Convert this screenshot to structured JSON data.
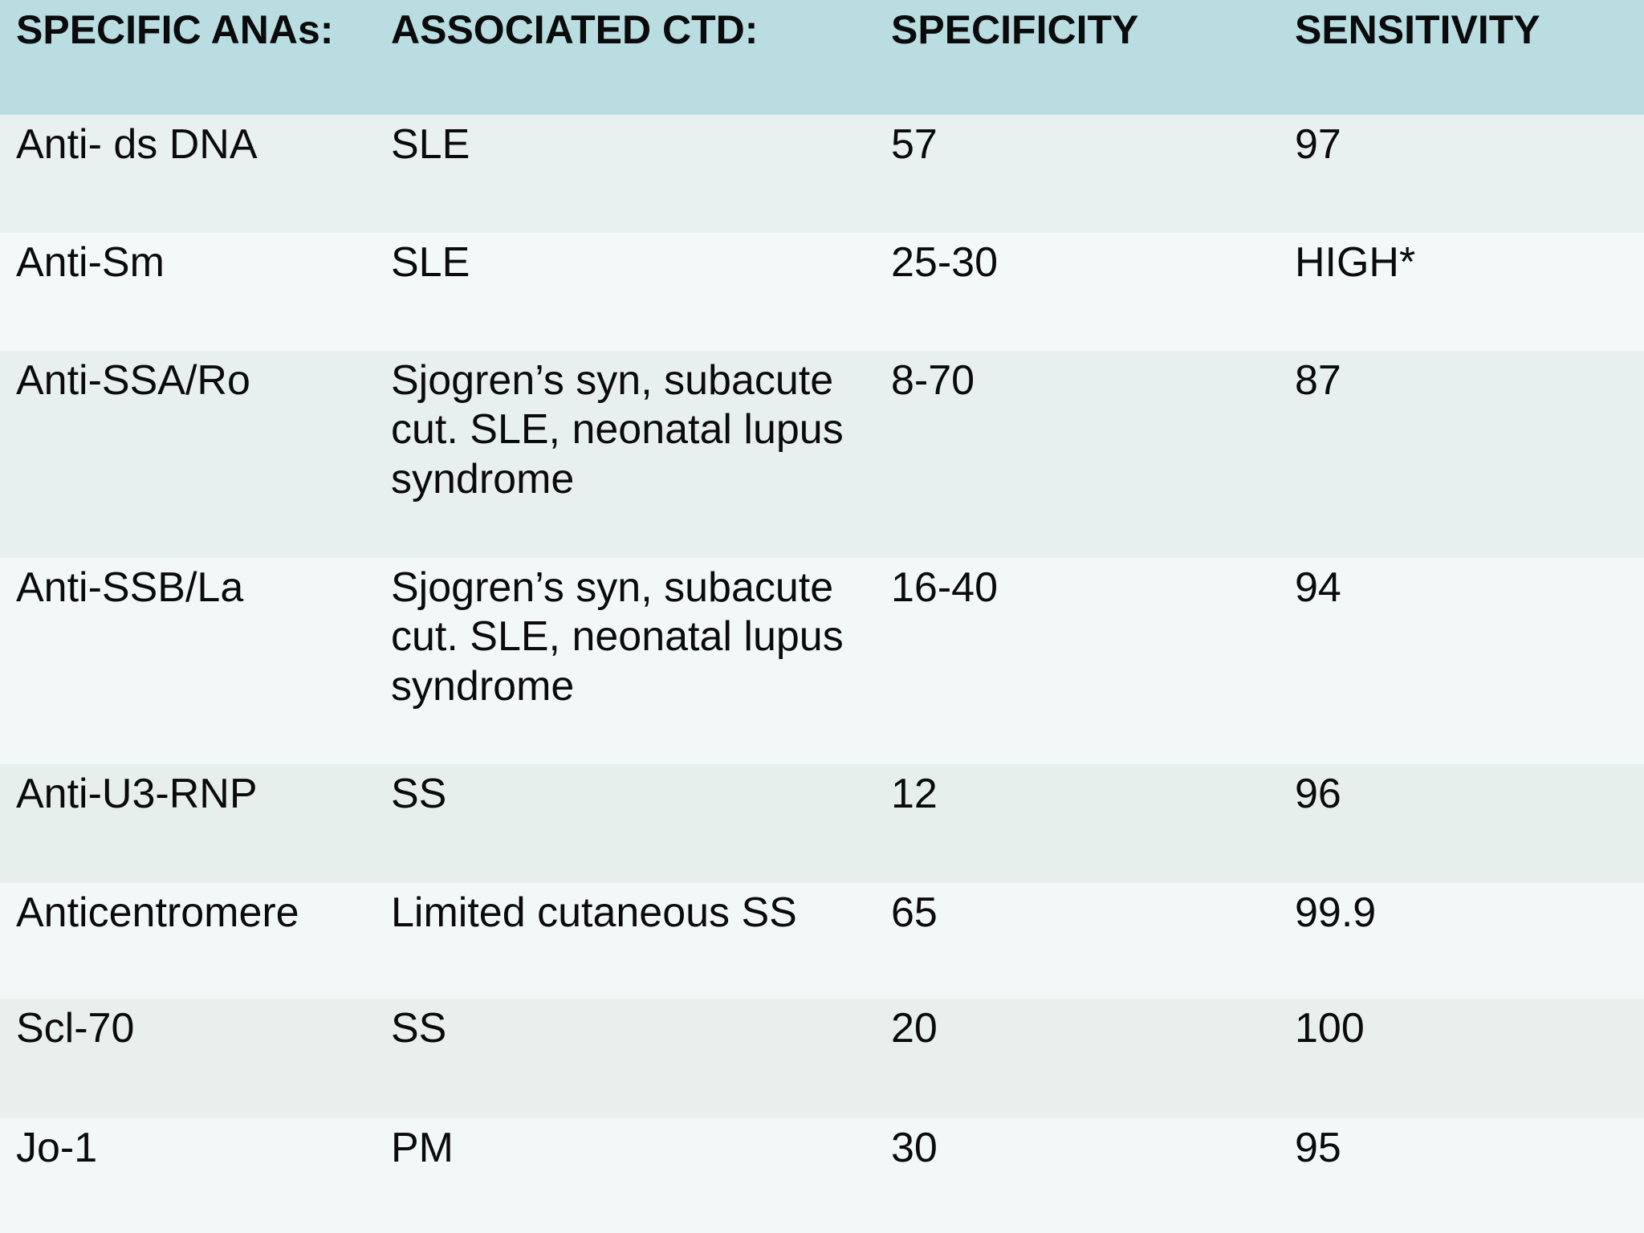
{
  "chart_data": {
    "type": "table",
    "columns": [
      "SPECIFIC ANAs:",
      "ASSOCIATED CTD:",
      "SPECIFICITY",
      "SENSITIVITY"
    ],
    "rows": [
      [
        "Anti- ds DNA",
        "SLE",
        "57",
        "97"
      ],
      [
        "Anti-Sm",
        "SLE",
        "25-30",
        "HIGH*"
      ],
      [
        "Anti-SSA/Ro",
        "Sjogren’s syn, subacute cut. SLE, neonatal lupus syndrome",
        "8-70",
        "87"
      ],
      [
        "Anti-SSB/La",
        "Sjogren’s syn, subacute cut. SLE, neonatal lupus syndrome",
        "16-40",
        "94"
      ],
      [
        "Anti-U3-RNP",
        "SS",
        "12",
        "96"
      ],
      [
        "Anticentromere",
        "Limited cutaneous SS",
        "65",
        "99.9"
      ],
      [
        "Scl-70",
        "SS",
        "20",
        "100"
      ],
      [
        "Jo-1",
        "PM",
        "30",
        "95"
      ]
    ]
  },
  "colors": {
    "header_bg": "#b9dde0",
    "row_odd_bg": "#e8f1f0",
    "row_even_bg": "#f2f9f8",
    "text": "#0b0b0b"
  }
}
